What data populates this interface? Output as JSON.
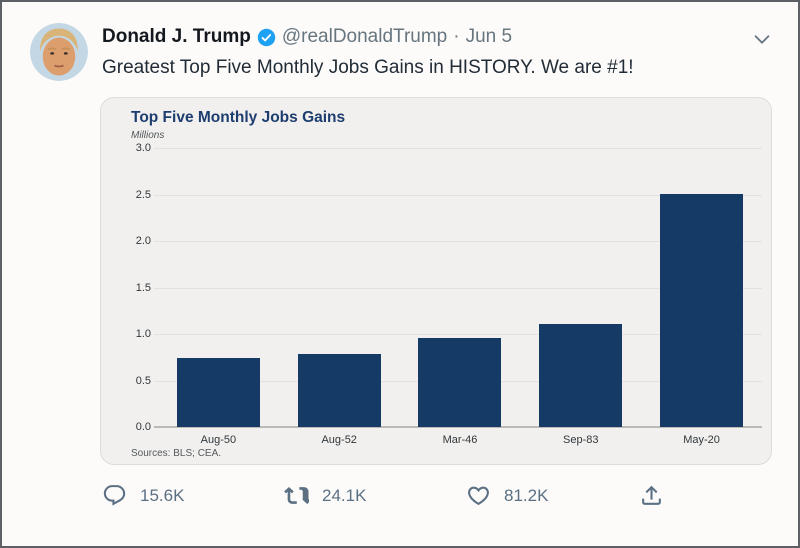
{
  "tweet": {
    "display_name": "Donald J. Trump",
    "handle": "@realDonaldTrump",
    "separator": "·",
    "date": "Jun 5",
    "verified": true,
    "body": "Greatest Top Five Monthly Jobs Gains in HISTORY. We are #1!"
  },
  "chart_data": {
    "type": "bar",
    "title": "Top Five Monthly Jobs Gains",
    "ylabel": "Millions",
    "xlabel": "",
    "categories": [
      "Aug-50",
      "Aug-52",
      "Mar-46",
      "Sep-83",
      "May-20"
    ],
    "values": [
      0.74,
      0.78,
      0.96,
      1.11,
      2.51
    ],
    "ylim": [
      0,
      3.0
    ],
    "yticks": [
      0.0,
      0.5,
      1.0,
      1.5,
      2.0,
      2.5,
      3.0
    ],
    "grid": true,
    "legend": "none",
    "bar_color": "#153a66",
    "source_note": "Sources: BLS; CEA."
  },
  "actions": {
    "reply_count": "15.6K",
    "retweet_count": "24.1K",
    "like_count": "81.2K"
  },
  "icons": {
    "verified": "verified-badge-icon",
    "chevron": "chevron-down-icon",
    "reply": "reply-icon",
    "retweet": "retweet-icon",
    "like": "heart-icon",
    "share": "share-icon"
  },
  "colors": {
    "accent_blue": "#1da1f2",
    "bar_navy": "#153a66",
    "title_navy": "#1d3d6f",
    "muted_gray": "#5b7083",
    "card_bg": "#f1f0ee"
  }
}
